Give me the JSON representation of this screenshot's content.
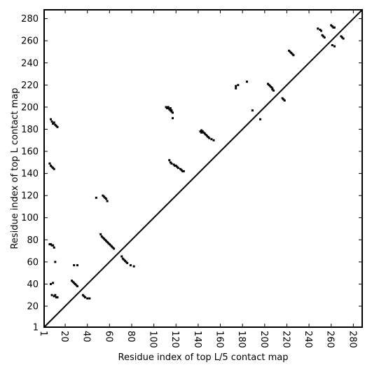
{
  "chart_data": {
    "type": "heatmap",
    "title": "",
    "xlabel": "Residue index of top L/5 contact map",
    "ylabel": "Residue index of top L contact map",
    "xlim": [
      1,
      288
    ],
    "ylim": [
      1,
      288
    ],
    "xticks": [
      "1",
      "20",
      "40",
      "60",
      "80",
      "100",
      "120",
      "140",
      "160",
      "180",
      "200",
      "220",
      "240",
      "260",
      "280"
    ],
    "yticks": [
      "1",
      "20",
      "40",
      "60",
      "80",
      "100",
      "120",
      "140",
      "160",
      "180",
      "200",
      "220",
      "240",
      "260",
      "280"
    ],
    "diagonal": [
      [
        1,
        1
      ],
      [
        288,
        288
      ]
    ],
    "upper_contacts": [
      [
        111,
        200
      ],
      [
        112,
        199
      ],
      [
        113,
        200
      ],
      [
        113,
        199
      ],
      [
        114,
        198
      ],
      [
        115,
        199
      ],
      [
        115,
        197
      ],
      [
        116,
        197
      ],
      [
        116,
        196
      ],
      [
        117,
        195
      ],
      [
        117,
        190
      ],
      [
        142,
        178
      ],
      [
        143,
        179
      ],
      [
        143,
        177
      ],
      [
        144,
        178
      ],
      [
        145,
        177
      ],
      [
        146,
        176
      ],
      [
        147,
        175
      ],
      [
        148,
        174
      ],
      [
        149,
        173
      ],
      [
        150,
        172
      ],
      [
        152,
        171
      ],
      [
        154,
        170
      ],
      [
        174,
        219
      ],
      [
        174,
        217
      ],
      [
        176,
        220
      ],
      [
        184,
        223
      ],
      [
        189,
        197
      ],
      [
        196,
        189
      ],
      [
        203,
        221
      ],
      [
        204,
        220
      ],
      [
        205,
        219
      ],
      [
        206,
        218
      ],
      [
        207,
        217
      ],
      [
        207,
        216
      ],
      [
        208,
        215
      ],
      [
        216,
        208
      ],
      [
        217,
        207
      ],
      [
        218,
        206
      ],
      [
        222,
        251
      ],
      [
        223,
        250
      ],
      [
        224,
        249
      ],
      [
        225,
        248
      ],
      [
        226,
        247
      ],
      [
        248,
        271
      ],
      [
        250,
        270
      ],
      [
        251,
        269
      ],
      [
        252,
        265
      ],
      [
        253,
        264
      ],
      [
        254,
        263
      ],
      [
        260,
        274
      ],
      [
        261,
        273
      ],
      [
        262,
        272
      ],
      [
        263,
        272
      ],
      [
        261,
        256
      ],
      [
        263,
        255
      ],
      [
        269,
        264
      ],
      [
        270,
        263
      ],
      [
        271,
        262
      ],
      [
        114,
        152
      ],
      [
        115,
        150
      ],
      [
        116,
        149
      ],
      [
        118,
        148
      ],
      [
        119,
        147
      ],
      [
        120,
        147
      ],
      [
        121,
        146
      ],
      [
        122,
        145
      ],
      [
        124,
        144
      ],
      [
        125,
        143
      ],
      [
        126,
        142
      ],
      [
        127,
        142
      ]
    ],
    "lower_contacts": [
      [
        7,
        189
      ],
      [
        8,
        187
      ],
      [
        9,
        185
      ],
      [
        10,
        186
      ],
      [
        11,
        184
      ],
      [
        12,
        183
      ],
      [
        13,
        182
      ],
      [
        6,
        149
      ],
      [
        7,
        147
      ],
      [
        8,
        146
      ],
      [
        9,
        145
      ],
      [
        10,
        144
      ],
      [
        6,
        76
      ],
      [
        7,
        76
      ],
      [
        8,
        75
      ],
      [
        9,
        75
      ],
      [
        10,
        73
      ],
      [
        11,
        60
      ],
      [
        9,
        41
      ],
      [
        7,
        40
      ],
      [
        8,
        30
      ],
      [
        10,
        29
      ],
      [
        11,
        30
      ],
      [
        12,
        28
      ],
      [
        13,
        28
      ],
      [
        26,
        43
      ],
      [
        27,
        42
      ],
      [
        28,
        41
      ],
      [
        29,
        40
      ],
      [
        30,
        39
      ],
      [
        31,
        38
      ],
      [
        28,
        57
      ],
      [
        31,
        57
      ],
      [
        36,
        30
      ],
      [
        37,
        29
      ],
      [
        38,
        28
      ],
      [
        40,
        27
      ],
      [
        42,
        27
      ],
      [
        48,
        118
      ],
      [
        54,
        120
      ],
      [
        55,
        119
      ],
      [
        56,
        118
      ],
      [
        57,
        117
      ],
      [
        58,
        115
      ],
      [
        52,
        85
      ],
      [
        53,
        83
      ],
      [
        54,
        82
      ],
      [
        55,
        81
      ],
      [
        56,
        80
      ],
      [
        57,
        79
      ],
      [
        58,
        78
      ],
      [
        59,
        77
      ],
      [
        60,
        76
      ],
      [
        61,
        75
      ],
      [
        62,
        74
      ],
      [
        63,
        73
      ],
      [
        64,
        72
      ],
      [
        71,
        65
      ],
      [
        72,
        63
      ],
      [
        73,
        62
      ],
      [
        74,
        61
      ],
      [
        75,
        60
      ],
      [
        76,
        59
      ],
      [
        79,
        57
      ],
      [
        82,
        56
      ]
    ]
  }
}
